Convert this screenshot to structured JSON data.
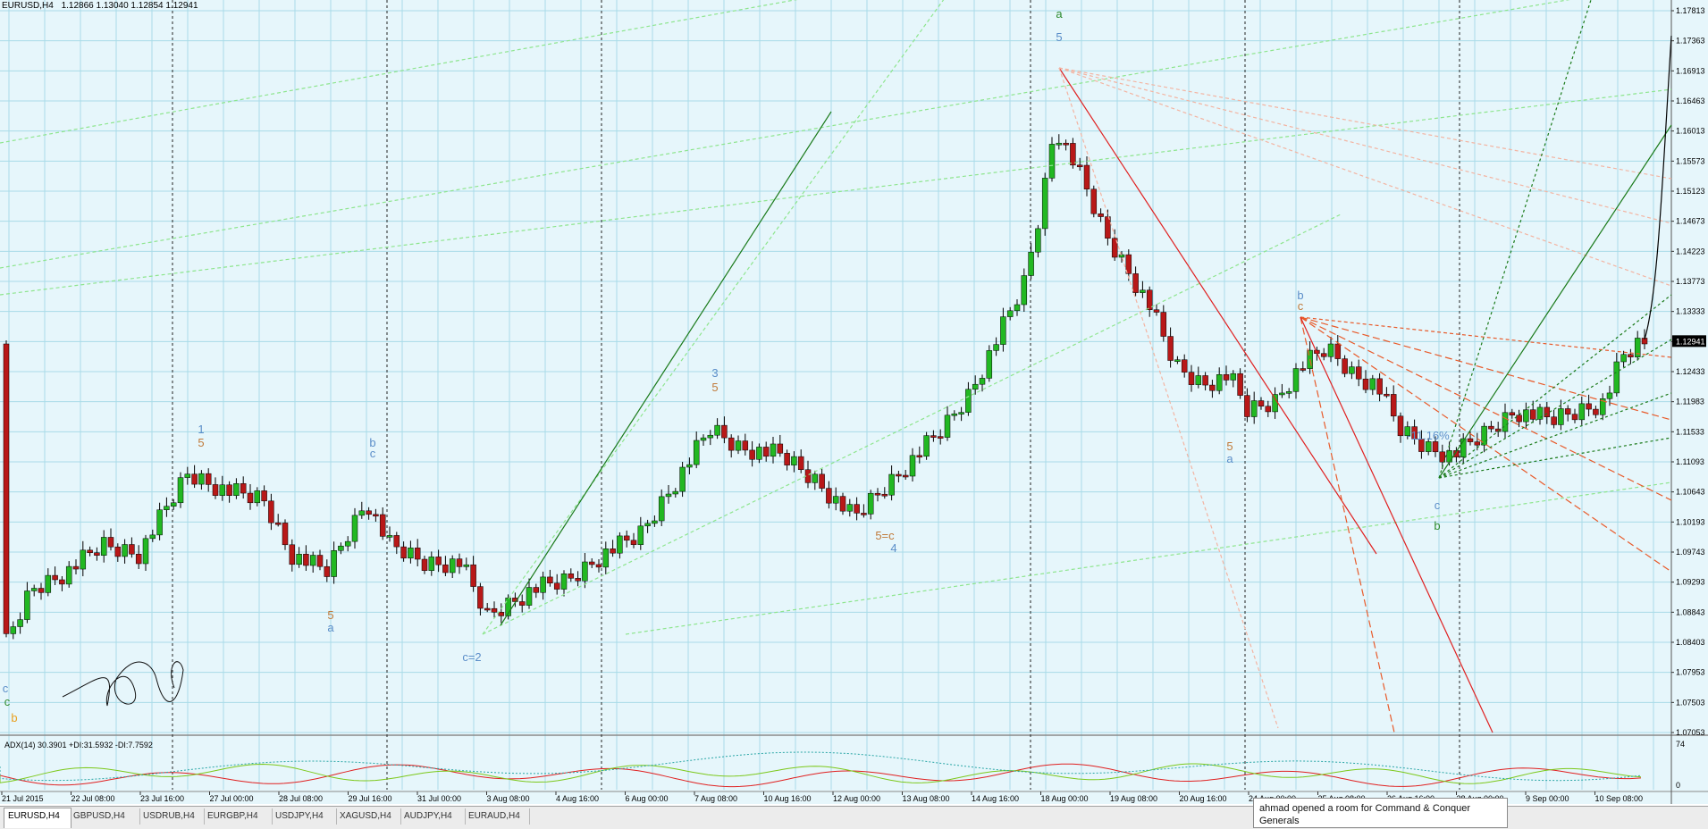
{
  "header": {
    "symbol": "EURUSD,H4",
    "ohlc": "1.12866 1.13040 1.12854 1.12941"
  },
  "adx": {
    "label": "ADX(14) 30.3901 +DI:31.5932 -DI:7.7592",
    "scale_top": "74",
    "scale_bottom": "0"
  },
  "price_axis": [
    "1.17813",
    "1.17363",
    "1.16913",
    "1.16463",
    "1.16013",
    "1.15573",
    "1.15123",
    "1.14673",
    "1.14223",
    "1.13773",
    "1.13333",
    "1.12941",
    "1.12433",
    "1.11983",
    "1.11533",
    "1.11093",
    "1.10643",
    "1.10193",
    "1.09743",
    "1.09293",
    "1.08843",
    "1.08403",
    "1.07953",
    "1.07503",
    "1.07053"
  ],
  "current_price": "1.12941",
  "time_axis": [
    "21 Jul 2015",
    "22 Jul 08:00",
    "23 Jul 16:00",
    "27 Jul 00:00",
    "28 Jul 08:00",
    "29 Jul 16:00",
    "31 Jul 00:00",
    "3 Aug 08:00",
    "4 Aug 16:00",
    "6 Aug 00:00",
    "7 Aug 08:00",
    "10 Aug 16:00",
    "12 Aug 00:00",
    "13 Aug 08:00",
    "14 Aug 16:00",
    "18 Aug 00:00",
    "19 Aug 08:00",
    "20 Aug 16:00",
    "24 Aug 00:00",
    "25 Aug 08:00",
    "26 Aug 16:00",
    "28 Aug 00:00",
    "9 Sep 00:00",
    "10 Sep 08:00"
  ],
  "wave_labels": [
    {
      "t": "1",
      "c": "#5b8ec9"
    },
    {
      "t": "5",
      "c": "#c07a3a"
    },
    {
      "t": "b",
      "c": "#5b8ec9"
    },
    {
      "t": "c",
      "c": "#5b8ec9"
    },
    {
      "t": "a",
      "c": "#5b8ec9"
    },
    {
      "t": "5",
      "c": "#c07a3a"
    },
    {
      "t": "c=2",
      "c": "#5b8ec9"
    },
    {
      "t": "3",
      "c": "#5b8ec9"
    },
    {
      "t": "5",
      "c": "#c07a3a"
    },
    {
      "t": "4",
      "c": "#5b8ec9"
    },
    {
      "t": "5=c",
      "c": "#c07a3a"
    },
    {
      "t": "a",
      "c": "#2e8b2e"
    },
    {
      "t": "5",
      "c": "#5b8ec9"
    },
    {
      "t": "b",
      "c": "#5b8ec9"
    },
    {
      "t": "c",
      "c": "#c07a3a"
    },
    {
      "t": "a",
      "c": "#5b8ec9"
    },
    {
      "t": "5",
      "c": "#c07a3a"
    },
    {
      "t": "c",
      "c": "#5b8ec9"
    },
    {
      "t": "b",
      "c": "#2e8b2e"
    },
    {
      "t": "c",
      "c": "#2e8b2e"
    },
    {
      "t": "b",
      "c": "#e8a020"
    },
    {
      "t": "c",
      "c": "#5b8ec9"
    },
    {
      "t": "-11.16%",
      "c": "#5b8ec9"
    }
  ],
  "tabs": [
    {
      "label": "EURUSD,H4",
      "active": true
    },
    {
      "label": "GBPUSD,H4",
      "active": false
    },
    {
      "label": "USDRUB,H4",
      "active": false
    },
    {
      "label": "EURGBP,H4",
      "active": false
    },
    {
      "label": "USDJPY,H4",
      "active": false
    },
    {
      "label": "XAGUSD,H4",
      "active": false
    },
    {
      "label": "AUDJPY,H4",
      "active": false
    },
    {
      "label": "EURAUD,H4",
      "active": false
    }
  ],
  "toast": {
    "text": "ahmad opened a room for Command & Conquer Generals"
  },
  "colors": {
    "bull": "#22b822",
    "bear": "#b81818",
    "grid": "#a9dbe8",
    "background": "#e6f6fb"
  }
}
